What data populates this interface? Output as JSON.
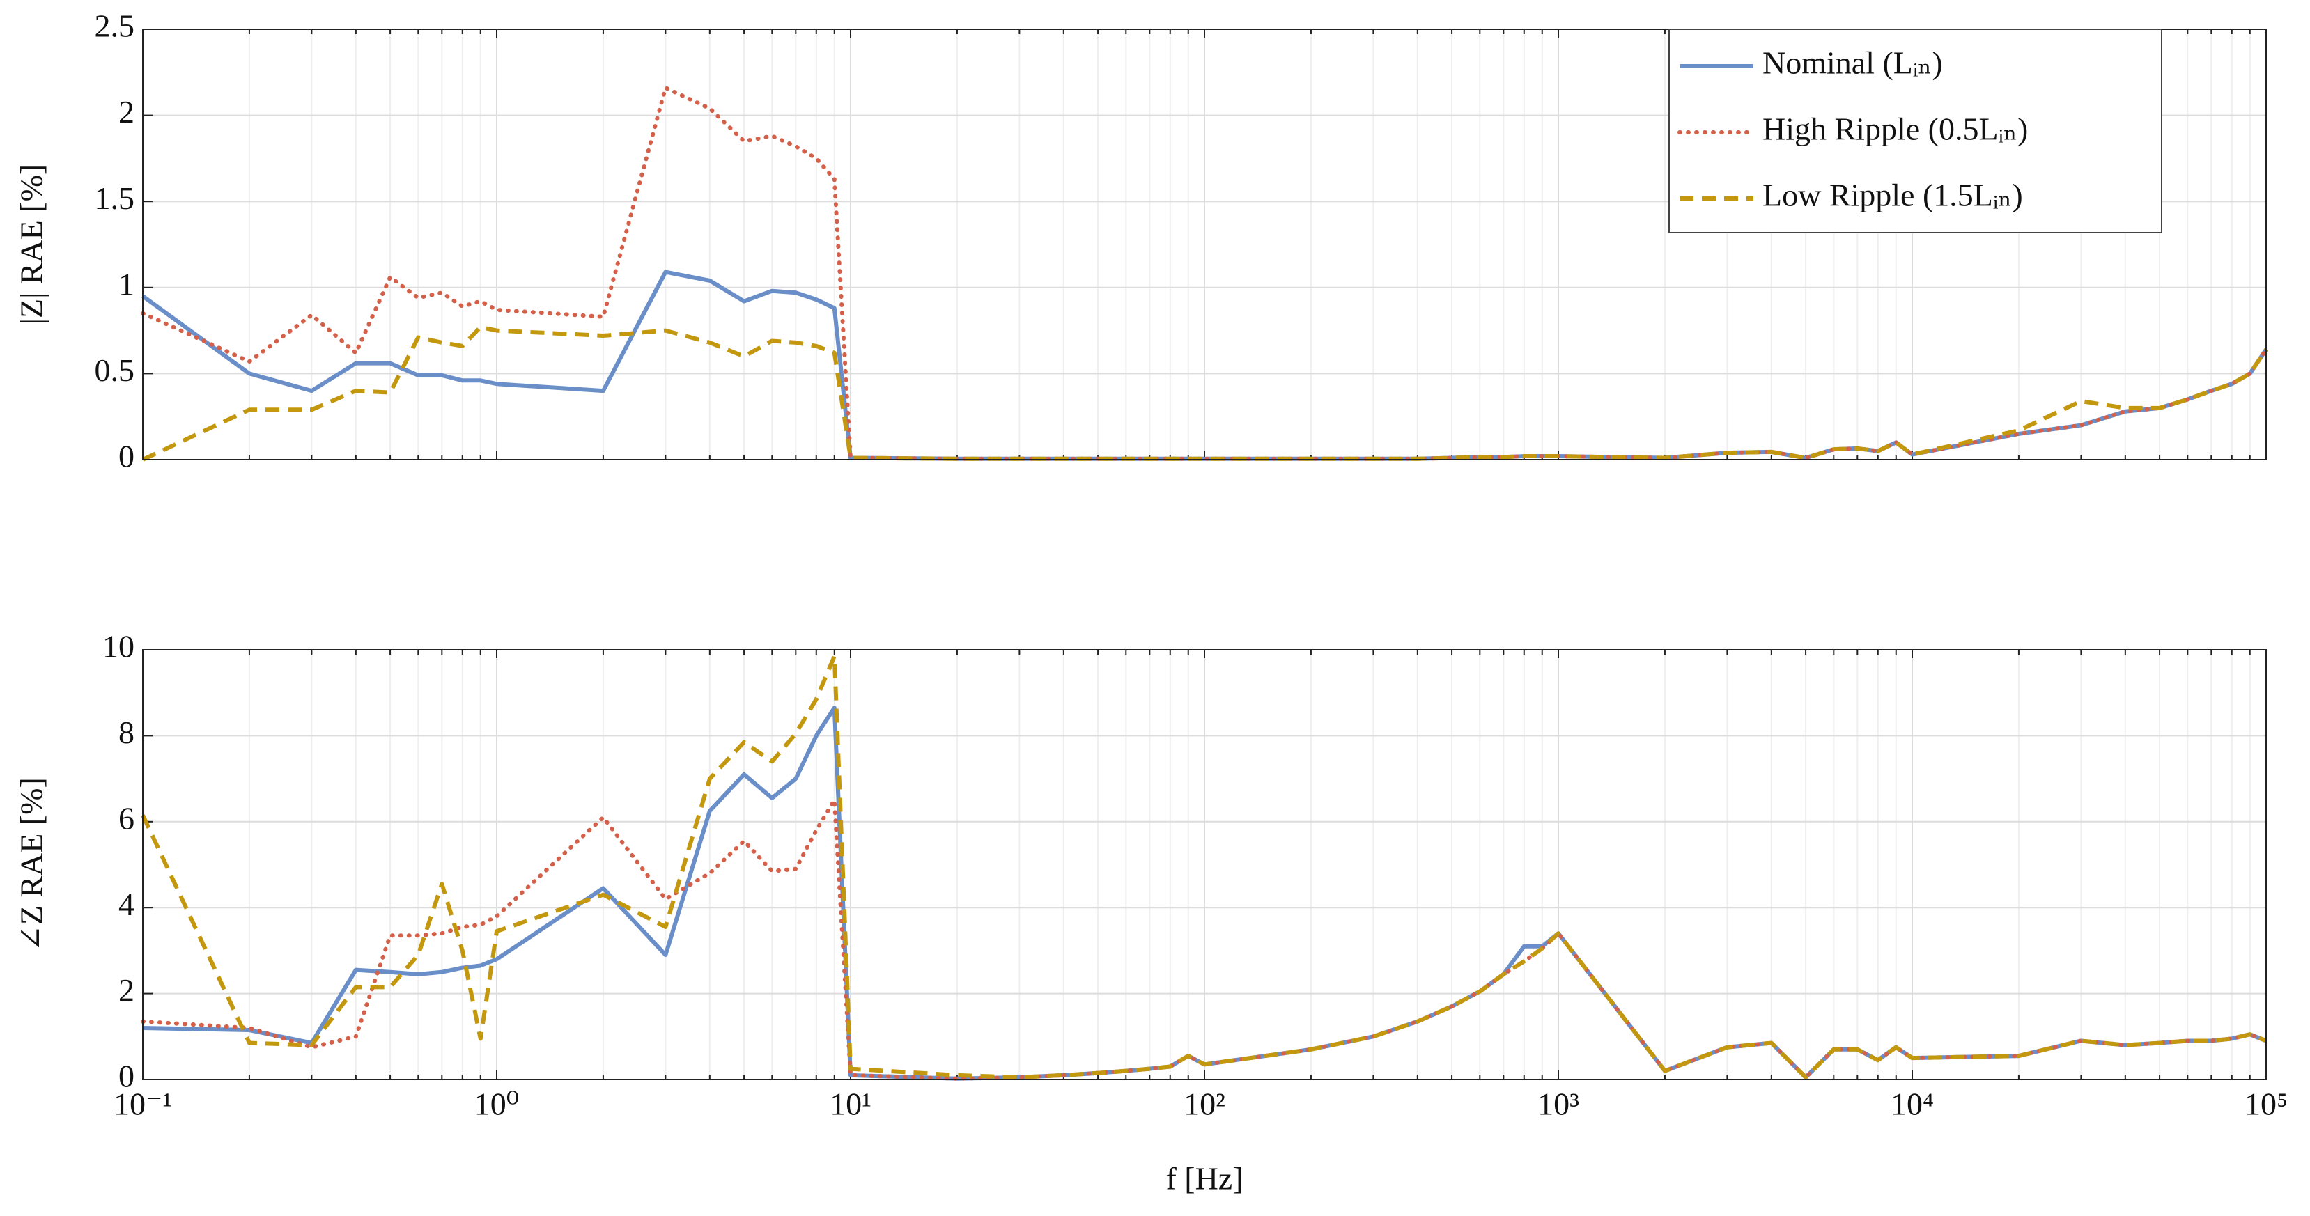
{
  "chart_data": [
    {
      "type": "line",
      "xscale": "log",
      "grid": true,
      "legend": "upper right",
      "ylabel": "|Z| RAE [%]",
      "xlim": [
        0.1,
        100000
      ],
      "ylim": [
        0,
        2.5
      ],
      "yticks": [
        0,
        0.5,
        1,
        1.5,
        2,
        2.5
      ],
      "x": [
        0.1,
        0.2,
        0.3,
        0.4,
        0.5,
        0.6,
        0.7,
        0.8,
        0.9,
        1,
        2,
        3,
        4,
        5,
        6,
        7,
        8,
        9,
        10,
        20,
        30,
        40,
        50,
        60,
        70,
        80,
        90,
        100,
        200,
        300,
        400,
        500,
        600,
        700,
        800,
        900,
        1000,
        2000,
        3000,
        4000,
        5000,
        6000,
        7000,
        8000,
        9000,
        10000,
        20000,
        30000,
        40000,
        50000,
        60000,
        70000,
        80000,
        90000,
        100000
      ],
      "series": [
        {
          "name": "Nominal (Lᵢₙ)",
          "color": "#6a8ec8",
          "style": "solid",
          "values": [
            0.95,
            0.5,
            0.4,
            0.56,
            0.56,
            0.49,
            0.49,
            0.46,
            0.46,
            0.44,
            0.4,
            1.09,
            1.04,
            0.92,
            0.98,
            0.97,
            0.93,
            0.88,
            0.01,
            0.005,
            0.005,
            0.005,
            0.005,
            0.005,
            0.005,
            0.005,
            0.005,
            0.005,
            0.005,
            0.005,
            0.005,
            0.01,
            0.015,
            0.015,
            0.02,
            0.02,
            0.02,
            0.01,
            0.04,
            0.045,
            0.01,
            0.06,
            0.065,
            0.05,
            0.1,
            0.03,
            0.15,
            0.2,
            0.28,
            0.3,
            0.35,
            0.4,
            0.44,
            0.5,
            0.64
          ]
        },
        {
          "name": "High Ripple (0.5Lᵢₙ)",
          "color": "#d4604a",
          "style": "dotted",
          "values": [
            0.85,
            0.57,
            0.84,
            0.62,
            1.06,
            0.94,
            0.97,
            0.89,
            0.92,
            0.87,
            0.83,
            2.16,
            2.04,
            1.85,
            1.88,
            1.82,
            1.75,
            1.63,
            0.01,
            0.005,
            0.005,
            0.005,
            0.005,
            0.005,
            0.005,
            0.005,
            0.005,
            0.005,
            0.005,
            0.005,
            0.005,
            0.01,
            0.015,
            0.015,
            0.02,
            0.02,
            0.02,
            0.01,
            0.04,
            0.045,
            0.01,
            0.06,
            0.065,
            0.05,
            0.1,
            0.03,
            0.15,
            0.2,
            0.28,
            0.3,
            0.35,
            0.4,
            0.44,
            0.5,
            0.64
          ]
        },
        {
          "name": "Low Ripple (1.5Lᵢₙ)",
          "color": "#c4980e",
          "style": "dashed",
          "values": [
            0,
            0.29,
            0.29,
            0.4,
            0.39,
            0.71,
            0.68,
            0.66,
            0.77,
            0.75,
            0.72,
            0.75,
            0.68,
            0.6,
            0.69,
            0.68,
            0.66,
            0.62,
            0.01,
            0.005,
            0.005,
            0.005,
            0.005,
            0.005,
            0.005,
            0.005,
            0.005,
            0.005,
            0.005,
            0.005,
            0.005,
            0.01,
            0.015,
            0.015,
            0.02,
            0.02,
            0.02,
            0.01,
            0.04,
            0.045,
            0.01,
            0.06,
            0.065,
            0.05,
            0.1,
            0.03,
            0.17,
            0.34,
            0.3,
            0.3,
            0.35,
            0.4,
            0.44,
            0.5,
            0.64
          ]
        }
      ]
    },
    {
      "type": "line",
      "xscale": "log",
      "grid": true,
      "ylabel": "∠Z RAE [%]",
      "xlabel": "f [Hz]",
      "xlim": [
        0.1,
        100000
      ],
      "ylim": [
        0,
        10
      ],
      "yticks": [
        0,
        2,
        4,
        6,
        8,
        10
      ],
      "xticks": [
        {
          "value": 0.1,
          "label": "10⁻¹"
        },
        {
          "value": 1,
          "label": "10⁰"
        },
        {
          "value": 10,
          "label": "10¹"
        },
        {
          "value": 100,
          "label": "10²"
        },
        {
          "value": 1000,
          "label": "10³"
        },
        {
          "value": 10000,
          "label": "10⁴"
        },
        {
          "value": 100000,
          "label": "10⁵"
        }
      ],
      "x": [
        0.1,
        0.2,
        0.3,
        0.4,
        0.5,
        0.6,
        0.7,
        0.8,
        0.9,
        1,
        2,
        3,
        4,
        5,
        6,
        7,
        8,
        9,
        10,
        20,
        30,
        40,
        50,
        60,
        70,
        80,
        90,
        100,
        200,
        300,
        400,
        500,
        600,
        700,
        800,
        900,
        1000,
        2000,
        3000,
        4000,
        5000,
        6000,
        7000,
        8000,
        9000,
        10000,
        20000,
        30000,
        40000,
        50000,
        60000,
        70000,
        80000,
        90000,
        100000
      ],
      "series": [
        {
          "color": "#6a8ec8",
          "style": "solid",
          "values": [
            1.2,
            1.15,
            0.85,
            2.55,
            2.5,
            2.45,
            2.5,
            2.6,
            2.65,
            2.8,
            4.45,
            2.9,
            6.25,
            7.1,
            6.55,
            7.0,
            8.0,
            8.65,
            0.1,
            0.02,
            0.05,
            0.1,
            0.15,
            0.2,
            0.25,
            0.3,
            0.55,
            0.35,
            0.7,
            1.0,
            1.35,
            1.7,
            2.05,
            2.45,
            3.1,
            3.1,
            3.4,
            0.2,
            0.75,
            0.85,
            0.05,
            0.7,
            0.7,
            0.45,
            0.75,
            0.5,
            0.55,
            0.9,
            0.8,
            0.85,
            0.9,
            0.9,
            0.95,
            1.05,
            0.9
          ]
        },
        {
          "color": "#d4604a",
          "style": "dotted",
          "values": [
            1.35,
            1.2,
            0.75,
            1.0,
            3.35,
            3.35,
            3.4,
            3.55,
            3.6,
            3.8,
            6.1,
            4.2,
            4.8,
            5.55,
            4.85,
            4.9,
            5.8,
            6.5,
            0.1,
            0.02,
            0.05,
            0.1,
            0.15,
            0.2,
            0.25,
            0.3,
            0.55,
            0.35,
            0.7,
            1.0,
            1.35,
            1.7,
            2.05,
            2.45,
            2.75,
            3.05,
            3.4,
            0.2,
            0.75,
            0.85,
            0.05,
            0.7,
            0.7,
            0.45,
            0.75,
            0.5,
            0.55,
            0.9,
            0.8,
            0.85,
            0.9,
            0.9,
            0.95,
            1.05,
            0.9
          ]
        },
        {
          "color": "#c4980e",
          "style": "dashed",
          "values": [
            6.15,
            0.85,
            0.8,
            2.15,
            2.15,
            2.9,
            4.55,
            3.0,
            0.95,
            3.45,
            4.3,
            3.55,
            7.0,
            7.85,
            7.4,
            8.05,
            8.85,
            9.85,
            0.25,
            0.1,
            0.05,
            0.1,
            0.15,
            0.2,
            0.25,
            0.3,
            0.55,
            0.35,
            0.7,
            1.0,
            1.35,
            1.7,
            2.05,
            2.45,
            2.75,
            3.05,
            3.4,
            0.2,
            0.75,
            0.85,
            0.05,
            0.7,
            0.7,
            0.45,
            0.75,
            0.5,
            0.55,
            0.9,
            0.8,
            0.85,
            0.9,
            0.9,
            0.95,
            1.05,
            0.9
          ]
        }
      ]
    }
  ]
}
